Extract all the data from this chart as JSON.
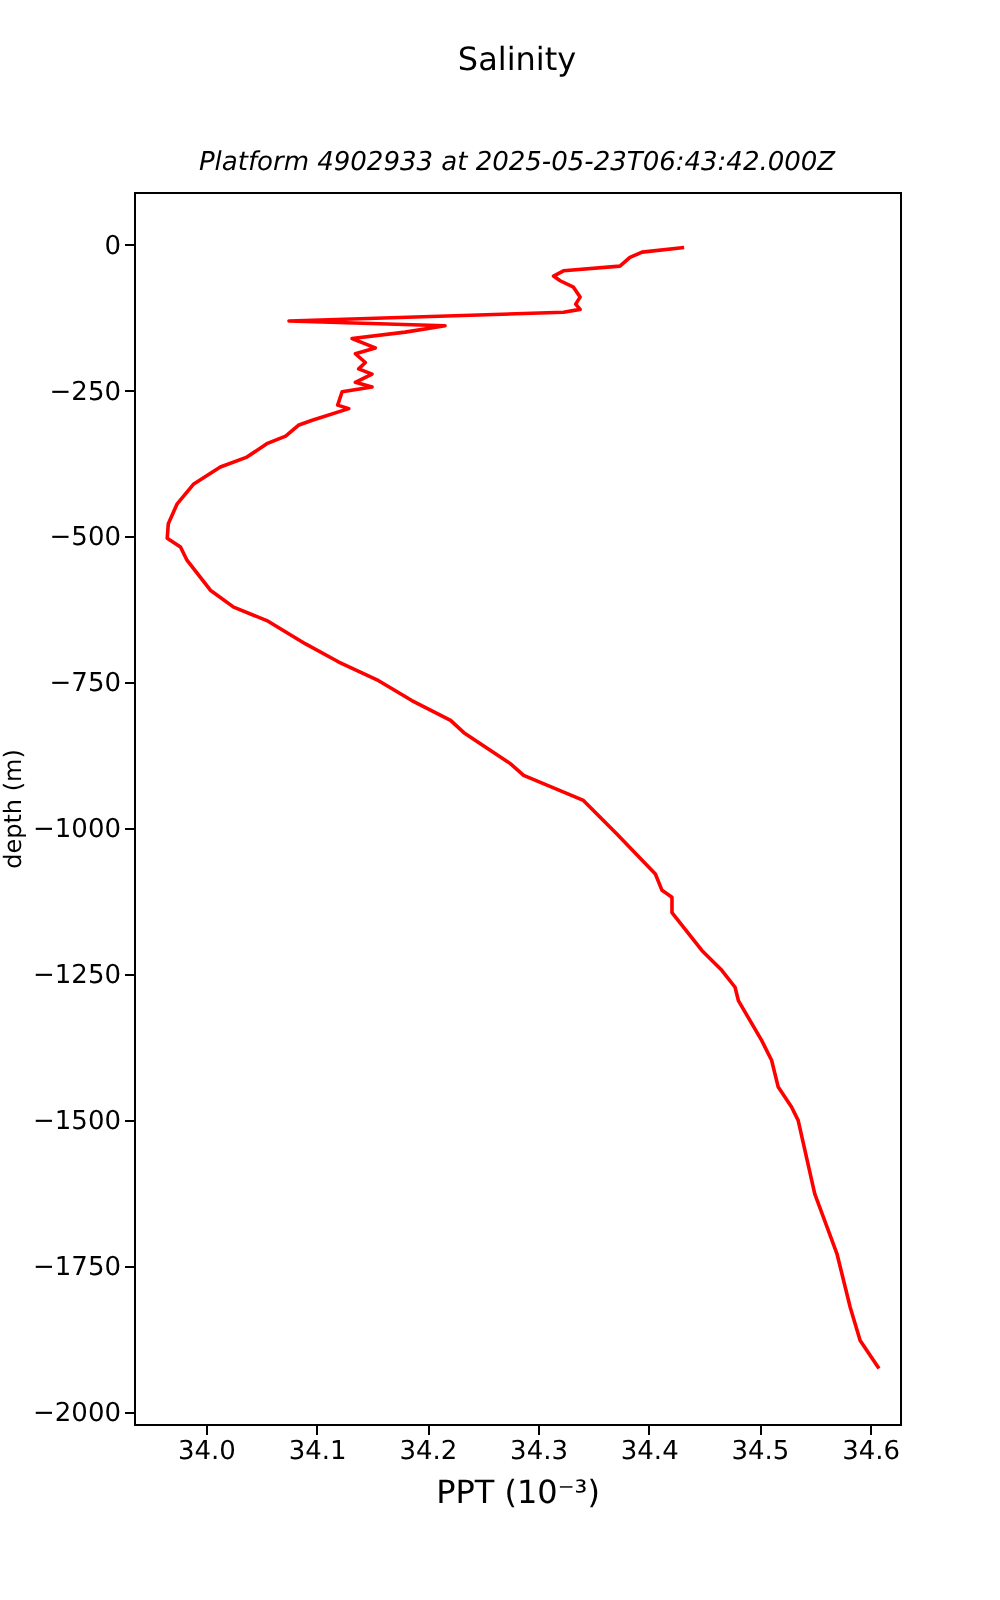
{
  "chart_data": {
    "type": "line",
    "title": "Salinity",
    "subtitle": "Platform 4902933 at 2025-05-23T06:43:42.000Z",
    "xlabel": "PPT (10⁻³)",
    "ylabel": "depth (m)",
    "xlim": [
      33.935,
      34.627
    ],
    "xticks": [
      {
        "value": 34,
        "label": "34.0"
      },
      34.1,
      34.2,
      34.3,
      34.4,
      34.5,
      34.6
    ],
    "ylim": [
      -2020,
      90
    ],
    "yticks": [
      0,
      {
        "value": -250,
        "label": "−250"
      },
      {
        "value": -500,
        "label": "−500"
      },
      {
        "value": -750,
        "label": "−750"
      },
      {
        "value": -1000,
        "label": "−1000"
      },
      {
        "value": -1250,
        "label": "−1250"
      },
      {
        "value": -1500,
        "label": "−1500"
      },
      {
        "value": -1750,
        "label": "−1750"
      },
      {
        "value": -2000,
        "label": "−2000"
      }
    ],
    "grid": false,
    "legend": false,
    "marker": "none",
    "line_style": "solid",
    "series": [
      {
        "color": "#ff0000",
        "x": [
          34.432,
          34.394,
          34.383,
          34.374,
          34.323,
          34.314,
          34.32,
          34.332,
          34.338,
          34.334,
          34.338,
          34.323,
          34.075,
          34.216,
          34.18,
          34.132,
          34.153,
          34.135,
          34.144,
          34.138,
          34.15,
          34.135,
          34.15,
          34.123,
          34.119,
          34.129,
          34.096,
          34.084,
          34.072,
          34.055,
          34.037,
          34.013,
          33.989,
          33.974,
          33.966,
          33.965,
          33.977,
          33.983,
          34.004,
          34.025,
          34.055,
          34.09,
          34.12,
          34.156,
          34.186,
          34.221,
          34.233,
          34.275,
          34.287,
          34.341,
          34.371,
          34.406,
          34.412,
          34.421,
          34.421,
          34.448,
          34.466,
          34.478,
          34.481,
          34.502,
          34.511,
          34.517,
          34.529,
          34.535,
          34.55,
          34.57,
          34.582,
          34.591,
          34.608
        ],
        "values": [
          -5,
          -13,
          -22,
          -37,
          -45,
          -54,
          -62,
          -73,
          -90,
          -102,
          -111,
          -116,
          -131,
          -139,
          -150,
          -161,
          -177,
          -187,
          -202,
          -213,
          -222,
          -236,
          -244,
          -252,
          -275,
          -281,
          -301,
          -309,
          -328,
          -341,
          -364,
          -381,
          -410,
          -444,
          -478,
          -503,
          -518,
          -541,
          -592,
          -621,
          -644,
          -684,
          -715,
          -747,
          -781,
          -815,
          -836,
          -889,
          -909,
          -952,
          -1009,
          -1078,
          -1106,
          -1118,
          -1144,
          -1209,
          -1243,
          -1272,
          -1295,
          -1363,
          -1397,
          -1443,
          -1477,
          -1500,
          -1626,
          -1728,
          -1820,
          -1877,
          -1925
        ]
      }
    ]
  }
}
